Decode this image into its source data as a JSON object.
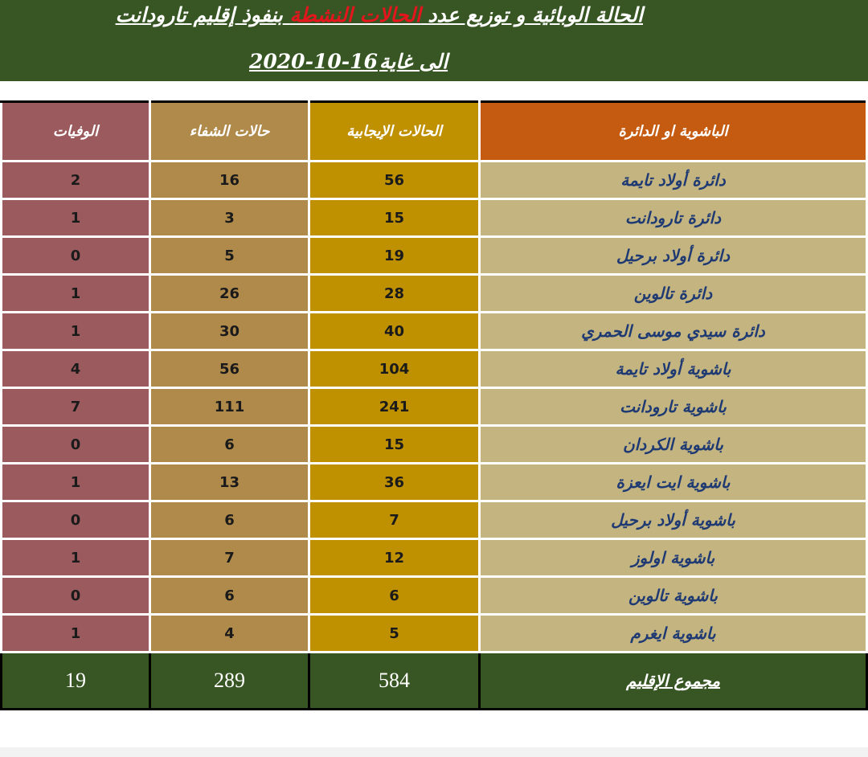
{
  "header": {
    "title_part1": "الحالة الوبائية و توزيع عدد",
    "title_red": "الحالات النشطة",
    "title_part2": "بنفوذ إقليم تارودانت",
    "subtitle_prefix": "الى غاية",
    "subtitle_date": "2020-10-16"
  },
  "columns": {
    "name": "الباشوية او الدائرة",
    "positive": "الحالات الإيجابية",
    "cured": "حالات الشفاء",
    "deaths": "الوفيات"
  },
  "rows": [
    {
      "name": "دائرة أولاد تايمة",
      "positive": "56",
      "cured": "16",
      "deaths": "2"
    },
    {
      "name": "دائرة تارودانت",
      "positive": "15",
      "cured": "3",
      "deaths": "1"
    },
    {
      "name": "دائرة أولاد برحيل",
      "positive": "19",
      "cured": "5",
      "deaths": "0"
    },
    {
      "name": "دائرة تالوين",
      "positive": "28",
      "cured": "26",
      "deaths": "1"
    },
    {
      "name": "دائرة سيدي موسى الحمري",
      "positive": "40",
      "cured": "30",
      "deaths": "1"
    },
    {
      "name": "باشوية أولاد تايمة",
      "positive": "104",
      "cured": "56",
      "deaths": "4"
    },
    {
      "name": "باشوية تارودانت",
      "positive": "241",
      "cured": "111",
      "deaths": "7"
    },
    {
      "name": "باشوية الكردان",
      "positive": "15",
      "cured": "6",
      "deaths": "0"
    },
    {
      "name": "باشوية ايت ايعزة",
      "positive": "36",
      "cured": "13",
      "deaths": "1"
    },
    {
      "name": "باشوية أولاد برحيل",
      "positive": "7",
      "cured": "6",
      "deaths": "0"
    },
    {
      "name": "باشوية اولوز",
      "positive": "12",
      "cured": "7",
      "deaths": "1"
    },
    {
      "name": "باشوية تالوين",
      "positive": "6",
      "cured": "6",
      "deaths": "0"
    },
    {
      "name": "باشوية ايغرم",
      "positive": "5",
      "cured": "4",
      "deaths": "1"
    }
  ],
  "total": {
    "label": "مجموع الإقليم",
    "positive": "584",
    "cured": "289",
    "deaths": "19"
  },
  "colors": {
    "header_bg": "#375623",
    "title_highlight": "#e3161d",
    "col_name_header": "#c55a11",
    "col_name": "#c4b580",
    "col_positive": "#bf9000",
    "col_cured": "#b08a4b",
    "col_deaths": "#9b5b5e",
    "name_text": "#1f3a73"
  }
}
